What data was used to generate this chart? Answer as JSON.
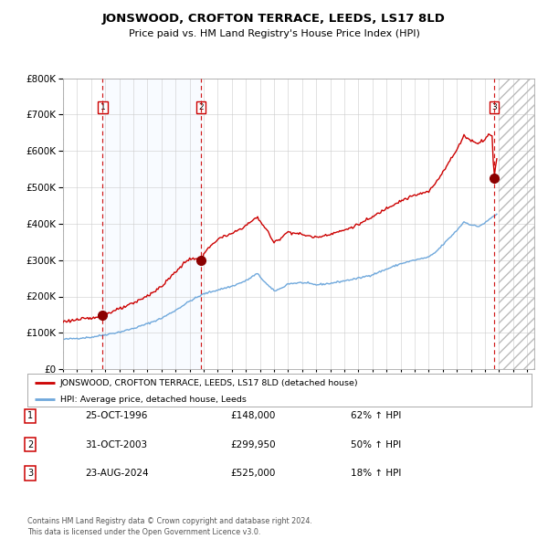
{
  "title": "JONSWOOD, CROFTON TERRACE, LEEDS, LS17 8LD",
  "subtitle": "Price paid vs. HM Land Registry's House Price Index (HPI)",
  "sale_dates_decimal": [
    1996.82,
    2003.83,
    2024.64
  ],
  "sale_prices": [
    148000,
    299950,
    525000
  ],
  "table_rows": [
    {
      "num": "1",
      "date": "25-OCT-1996",
      "price": "£148,000",
      "change": "62% ↑ HPI"
    },
    {
      "num": "2",
      "date": "31-OCT-2003",
      "price": "£299,950",
      "change": "50% ↑ HPI"
    },
    {
      "num": "3",
      "date": "23-AUG-2024",
      "price": "£525,000",
      "change": "18% ↑ HPI"
    }
  ],
  "legend_line1": "JONSWOOD, CROFTON TERRACE, LEEDS, LS17 8LD (detached house)",
  "legend_line2": "HPI: Average price, detached house, Leeds",
  "footer": "Contains HM Land Registry data © Crown copyright and database right 2024.\nThis data is licensed under the Open Government Licence v3.0.",
  "hpi_color": "#6fa8dc",
  "sale_color": "#cc0000",
  "sale_dot_color": "#8b0000",
  "background_color": "#ffffff",
  "shaded_region_color": "#ddeeff",
  "ylim": [
    0,
    800000
  ],
  "xlim_start": 1994.0,
  "xlim_end": 2027.5,
  "ylabel_ticks": [
    0,
    100000,
    200000,
    300000,
    400000,
    500000,
    600000,
    700000,
    800000
  ],
  "hpi_anchors": [
    [
      1994.0,
      82000
    ],
    [
      1995.0,
      85000
    ],
    [
      1996.0,
      88000
    ],
    [
      1997.0,
      95000
    ],
    [
      1998.0,
      102000
    ],
    [
      1999.0,
      112000
    ],
    [
      2000.0,
      125000
    ],
    [
      2001.0,
      140000
    ],
    [
      2002.0,
      162000
    ],
    [
      2003.0,
      187000
    ],
    [
      2004.0,
      207000
    ],
    [
      2005.0,
      218000
    ],
    [
      2006.0,
      228000
    ],
    [
      2007.0,
      243000
    ],
    [
      2007.8,
      263000
    ],
    [
      2008.5,
      233000
    ],
    [
      2009.0,
      215000
    ],
    [
      2009.5,
      222000
    ],
    [
      2010.0,
      235000
    ],
    [
      2011.0,
      238000
    ],
    [
      2012.0,
      232000
    ],
    [
      2013.0,
      236000
    ],
    [
      2014.0,
      243000
    ],
    [
      2015.0,
      250000
    ],
    [
      2016.0,
      260000
    ],
    [
      2017.0,
      275000
    ],
    [
      2018.0,
      290000
    ],
    [
      2019.0,
      300000
    ],
    [
      2020.0,
      308000
    ],
    [
      2020.5,
      322000
    ],
    [
      2021.0,
      342000
    ],
    [
      2022.0,
      382000
    ],
    [
      2022.5,
      405000
    ],
    [
      2023.0,
      397000
    ],
    [
      2023.5,
      392000
    ],
    [
      2024.0,
      402000
    ],
    [
      2024.5,
      418000
    ],
    [
      2024.9,
      428000
    ]
  ],
  "red_anchors": [
    [
      1994.0,
      131000
    ],
    [
      1995.0,
      136000
    ],
    [
      1996.0,
      140000
    ],
    [
      1996.82,
      148000
    ],
    [
      1997.0,
      152000
    ],
    [
      1998.0,
      165000
    ],
    [
      1999.0,
      181000
    ],
    [
      2000.0,
      202000
    ],
    [
      2001.0,
      227000
    ],
    [
      2002.0,
      268000
    ],
    [
      2003.0,
      305000
    ],
    [
      2003.83,
      299950
    ],
    [
      2004.0,
      318000
    ],
    [
      2005.0,
      358000
    ],
    [
      2006.0,
      372000
    ],
    [
      2007.0,
      395000
    ],
    [
      2007.8,
      418000
    ],
    [
      2008.5,
      382000
    ],
    [
      2009.0,
      347000
    ],
    [
      2009.5,
      362000
    ],
    [
      2010.0,
      378000
    ],
    [
      2011.0,
      370000
    ],
    [
      2012.0,
      362000
    ],
    [
      2013.0,
      372000
    ],
    [
      2014.0,
      382000
    ],
    [
      2015.0,
      398000
    ],
    [
      2016.0,
      418000
    ],
    [
      2017.0,
      443000
    ],
    [
      2018.0,
      463000
    ],
    [
      2019.0,
      478000
    ],
    [
      2020.0,
      488000
    ],
    [
      2020.5,
      513000
    ],
    [
      2021.0,
      543000
    ],
    [
      2022.0,
      603000
    ],
    [
      2022.5,
      643000
    ],
    [
      2023.0,
      628000
    ],
    [
      2023.5,
      622000
    ],
    [
      2024.0,
      632000
    ],
    [
      2024.3,
      648000
    ],
    [
      2024.5,
      638000
    ],
    [
      2024.64,
      525000
    ],
    [
      2024.9,
      603000
    ]
  ]
}
